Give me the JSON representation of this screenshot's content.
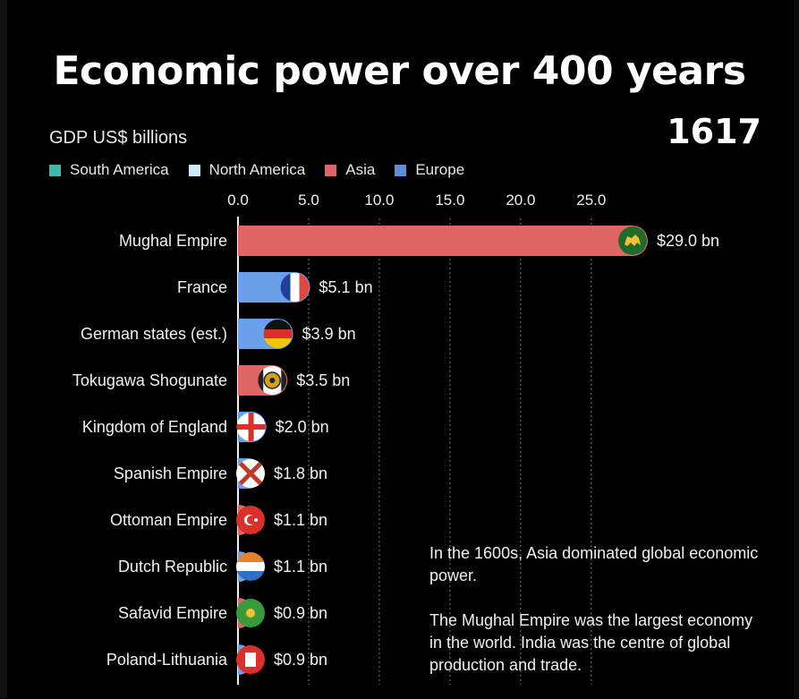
{
  "header": {
    "title": "Economic power over 400 years",
    "subtitle": "GDP US$ billions",
    "year": "1617"
  },
  "legend": [
    {
      "label": "South America",
      "color": "#3fb8ad"
    },
    {
      "label": "North America",
      "color": "#cfe9f8"
    },
    {
      "label": "Asia",
      "color": "#e06666"
    },
    {
      "label": "Europe",
      "color": "#5b8fd9"
    }
  ],
  "chart_data": {
    "type": "bar",
    "orientation": "horizontal",
    "xlim": [
      0,
      29.0
    ],
    "x_ticks": [
      "0.0",
      "5.0",
      "10.0",
      "15.0",
      "20.0",
      "25.0"
    ],
    "x_tick_values": [
      0,
      5,
      10,
      15,
      20,
      25
    ],
    "grid": true,
    "categories": [
      "Mughal Empire",
      "France",
      "German states (est.)",
      "Tokugawa Shogunate",
      "Kingdom of England",
      "Spanish Empire",
      "Ottoman Empire",
      "Dutch Republic",
      "Safavid Empire",
      "Poland-Lithuania"
    ],
    "values": [
      29.0,
      5.1,
      3.9,
      3.5,
      2.0,
      1.8,
      1.1,
      1.1,
      0.9,
      0.9
    ],
    "value_labels": [
      "$29.0 bn",
      "$5.1 bn",
      "$3.9 bn",
      "$3.5 bn",
      "$2.0 bn",
      "$1.8 bn",
      "$1.1 bn",
      "$1.1 bn",
      "$0.9 bn",
      "$0.9 bn"
    ],
    "regions": [
      "Asia",
      "Europe",
      "Europe",
      "Asia",
      "Europe",
      "Europe",
      "Asia",
      "Europe",
      "Asia",
      "Europe"
    ],
    "flags": [
      "mughal-flag-icon",
      "france-flag-icon",
      "germany-flag-icon",
      "tokugawa-flag-icon",
      "england-flag-icon",
      "spain-burgundy-flag-icon",
      "ottoman-flag-icon",
      "dutch-flag-icon",
      "safavid-flag-icon",
      "poland-lithuania-flag-icon"
    ],
    "region_colors": {
      "Asia": "#e06666",
      "Europe": "#6aa0ea",
      "South America": "#3fb8ad",
      "North America": "#cfe9f8"
    }
  },
  "note": {
    "paragraph1": "In the 1600s, Asia dominated global economic power.",
    "paragraph2": "The Mughal Empire was the largest economy in the world. India was the centre of global production and trade."
  }
}
